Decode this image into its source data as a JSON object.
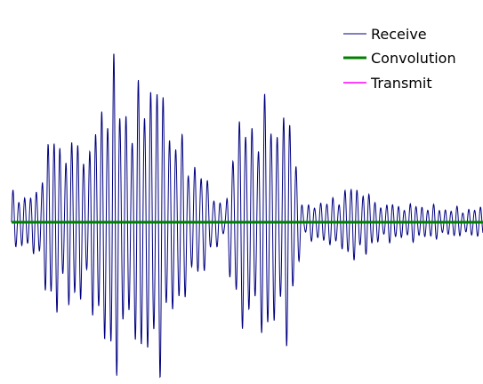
{
  "chart_data": {
    "type": "line",
    "title": "",
    "xlabel": "",
    "ylabel": "",
    "grid": false,
    "legend_position": "top-right",
    "x_range": [
      0,
      540
    ],
    "y_range": [
      -1,
      1
    ],
    "series": [
      {
        "name": "Receive",
        "color": "#000080",
        "envelope": [
          [
            0,
            0.16
          ],
          [
            30,
            0.16
          ],
          [
            40,
            0.5
          ],
          [
            55,
            0.45
          ],
          [
            65,
            0.5
          ],
          [
            80,
            0.42
          ],
          [
            100,
            0.55
          ],
          [
            115,
            1.0
          ],
          [
            125,
            0.65
          ],
          [
            145,
            0.7
          ],
          [
            160,
            0.9
          ],
          [
            175,
            0.7
          ],
          [
            185,
            0.55
          ],
          [
            195,
            0.45
          ],
          [
            215,
            0.3
          ],
          [
            230,
            0.2
          ],
          [
            245,
            0.05
          ],
          [
            255,
            0.6
          ],
          [
            270,
            0.55
          ],
          [
            290,
            0.65
          ],
          [
            320,
            0.6
          ],
          [
            335,
            0.05
          ],
          [
            345,
            0.12
          ],
          [
            365,
            0.12
          ],
          [
            380,
            0.18
          ],
          [
            400,
            0.22
          ],
          [
            415,
            0.12
          ],
          [
            440,
            0.1
          ],
          [
            470,
            0.1
          ],
          [
            500,
            0.08
          ],
          [
            540,
            0.08
          ]
        ]
      },
      {
        "name": "Convolution",
        "color": "#008000",
        "values": [
          0,
          0
        ]
      },
      {
        "name": "Transmit",
        "color": "#ff00ff",
        "values": []
      }
    ]
  }
}
